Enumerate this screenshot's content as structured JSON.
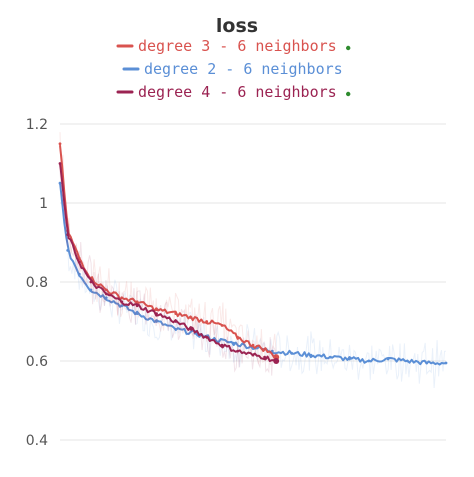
{
  "chart_data": {
    "type": "line",
    "title": "loss",
    "xlabel": "",
    "ylabel": "",
    "ylim": [
      0.4,
      1.2
    ],
    "yticks": [
      "0.4",
      "0.6",
      "0.8",
      "1",
      "1.2"
    ],
    "grid": true,
    "legend_position": "top-center",
    "series": [
      {
        "name": "degree 3 - 6 neighbors",
        "color": "#d9534f",
        "marker": "dot",
        "x": [
          0,
          0.02,
          0.05,
          0.08,
          0.12,
          0.16,
          0.2,
          0.25,
          0.3,
          0.34,
          0.38,
          0.42,
          0.46,
          0.5,
          0.53,
          0.56
        ],
        "y": [
          1.15,
          0.93,
          0.86,
          0.81,
          0.78,
          0.76,
          0.75,
          0.73,
          0.72,
          0.71,
          0.7,
          0.69,
          0.66,
          0.64,
          0.63,
          0.61
        ]
      },
      {
        "name": "degree 2 - 6 neighbors",
        "color": "#5b8fd6",
        "marker": "none",
        "x": [
          0,
          0.02,
          0.05,
          0.08,
          0.12,
          0.16,
          0.2,
          0.25,
          0.3,
          0.35,
          0.4,
          0.45,
          0.5,
          0.55,
          0.6,
          0.65,
          0.7,
          0.75,
          0.8,
          0.85,
          0.9,
          0.95,
          1.0
        ],
        "y": [
          1.05,
          0.88,
          0.82,
          0.78,
          0.76,
          0.74,
          0.72,
          0.7,
          0.68,
          0.67,
          0.655,
          0.645,
          0.635,
          0.625,
          0.62,
          0.615,
          0.61,
          0.605,
          0.6,
          0.605,
          0.6,
          0.595,
          0.595
        ]
      },
      {
        "name": "degree 4 - 6 neighbors",
        "color": "#9b2352",
        "marker": "dot",
        "x": [
          0,
          0.02,
          0.05,
          0.08,
          0.12,
          0.16,
          0.2,
          0.25,
          0.3,
          0.34,
          0.38,
          0.42,
          0.46,
          0.5,
          0.53,
          0.56
        ],
        "y": [
          1.1,
          0.92,
          0.85,
          0.8,
          0.77,
          0.75,
          0.74,
          0.72,
          0.7,
          0.68,
          0.66,
          0.64,
          0.625,
          0.615,
          0.61,
          0.6
        ]
      }
    ]
  },
  "colors": {
    "grid": "#e6e6e6",
    "legend_dot": "#2e8b2e"
  }
}
